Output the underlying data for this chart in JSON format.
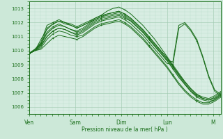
{
  "title": "Pression niveau de la mer( hPa )",
  "bg_color": "#cce8d8",
  "plot_bg_color": "#d8ede3",
  "line_color": "#1a6e1a",
  "grid_color_major": "#9ec8ae",
  "grid_color_minor": "#b8dcc8",
  "ylim": [
    1005.5,
    1013.5
  ],
  "yticks": [
    1006,
    1007,
    1008,
    1009,
    1010,
    1011,
    1012,
    1013
  ],
  "x_labels": [
    "Ven",
    "Sam",
    "Dim",
    "Lun",
    "M"
  ],
  "x_positions": [
    0,
    24,
    48,
    72,
    96
  ],
  "total_hours": 100,
  "series": [
    [
      1009.8,
      1010.0,
      1010.8,
      1011.5,
      1011.9,
      1012.1,
      1012.0,
      1011.8,
      1011.6,
      1011.8,
      1012.0,
      1012.3,
      1012.5,
      1012.8,
      1013.0,
      1013.1,
      1012.9,
      1012.6,
      1012.2,
      1011.8,
      1011.3,
      1010.8,
      1010.2,
      1009.6,
      1009.0,
      1008.4,
      1007.8,
      1007.3,
      1006.9,
      1006.6,
      1006.5,
      1006.7,
      1007.0
    ],
    [
      1009.8,
      1010.0,
      1010.5,
      1011.3,
      1011.7,
      1011.9,
      1011.7,
      1011.5,
      1011.4,
      1011.6,
      1011.9,
      1012.2,
      1012.4,
      1012.6,
      1012.7,
      1012.8,
      1012.6,
      1012.3,
      1011.9,
      1011.5,
      1011.0,
      1010.5,
      1010.0,
      1009.5,
      1008.9,
      1008.3,
      1007.8,
      1007.3,
      1006.9,
      1006.7,
      1006.6,
      1006.8,
      1007.1
    ],
    [
      1009.8,
      1010.0,
      1010.3,
      1011.0,
      1011.4,
      1011.6,
      1011.5,
      1011.3,
      1011.2,
      1011.4,
      1011.7,
      1012.0,
      1012.2,
      1012.3,
      1012.4,
      1012.5,
      1012.3,
      1012.1,
      1011.7,
      1011.3,
      1010.8,
      1010.3,
      1009.8,
      1009.3,
      1008.7,
      1008.1,
      1007.6,
      1007.1,
      1006.8,
      1006.6,
      1006.5,
      1006.6,
      1006.9
    ],
    [
      1009.8,
      1010.0,
      1010.2,
      1010.8,
      1011.2,
      1011.4,
      1011.3,
      1011.1,
      1011.0,
      1011.1,
      1011.4,
      1011.7,
      1011.9,
      1012.0,
      1012.1,
      1012.2,
      1012.0,
      1011.7,
      1011.3,
      1010.9,
      1010.4,
      1009.9,
      1009.4,
      1008.9,
      1008.3,
      1007.7,
      1007.2,
      1006.8,
      1006.5,
      1006.3,
      1006.3,
      1006.5,
      1006.8
    ],
    [
      1009.8,
      1010.0,
      1010.1,
      1010.5,
      1010.9,
      1011.1,
      1011.0,
      1010.9,
      1010.8,
      1011.0,
      1011.3,
      1011.6,
      1011.8,
      1011.9,
      1012.0,
      1012.1,
      1011.9,
      1011.6,
      1011.2,
      1010.8,
      1010.3,
      1009.8,
      1009.3,
      1008.8,
      1008.2,
      1007.6,
      1007.1,
      1006.7,
      1006.4,
      1006.2,
      1006.2,
      1006.4,
      1006.7
    ],
    [
      1009.8,
      1010.1,
      1010.5,
      1011.2,
      1011.6,
      1011.8,
      1011.7,
      1011.5,
      1011.3,
      1011.5,
      1011.8,
      1012.1,
      1012.3,
      1012.4,
      1012.5,
      1012.6,
      1012.4,
      1012.1,
      1011.7,
      1011.3,
      1010.8,
      1010.3,
      1009.8,
      1009.3,
      1009.2,
      1011.8,
      1012.0,
      1011.5,
      1010.8,
      1009.6,
      1008.2,
      1007.2,
      1006.9
    ],
    [
      1009.8,
      1010.1,
      1010.4,
      1011.0,
      1011.4,
      1011.6,
      1011.5,
      1011.3,
      1011.1,
      1011.3,
      1011.6,
      1011.9,
      1012.1,
      1012.2,
      1012.3,
      1012.4,
      1012.2,
      1011.9,
      1011.5,
      1011.1,
      1010.6,
      1010.1,
      1009.6,
      1009.1,
      1009.0,
      1011.6,
      1011.9,
      1011.4,
      1010.7,
      1009.5,
      1008.1,
      1007.1,
      1006.8
    ],
    [
      1009.8,
      1010.1,
      1010.6,
      1011.8,
      1012.0,
      1012.2,
      1012.0,
      1011.9,
      1011.7,
      1011.9,
      1012.1,
      1012.3,
      1012.5,
      1012.6,
      1012.7,
      1012.8,
      1012.6,
      1012.3,
      1011.9,
      1011.5,
      1011.0,
      1010.5,
      1010.0,
      1009.5,
      1008.9,
      1008.3,
      1007.7,
      1007.2,
      1006.8,
      1006.6,
      1006.5,
      1006.6,
      1006.9
    ],
    [
      1009.8,
      1010.0,
      1010.4,
      1011.6,
      1011.9,
      1012.1,
      1011.9,
      1011.8,
      1011.6,
      1011.8,
      1012.0,
      1012.2,
      1012.4,
      1012.5,
      1012.6,
      1012.7,
      1012.5,
      1012.2,
      1011.8,
      1011.4,
      1010.9,
      1010.4,
      1009.9,
      1009.4,
      1008.8,
      1008.2,
      1007.6,
      1007.1,
      1006.7,
      1006.5,
      1006.4,
      1006.5,
      1006.8
    ]
  ]
}
